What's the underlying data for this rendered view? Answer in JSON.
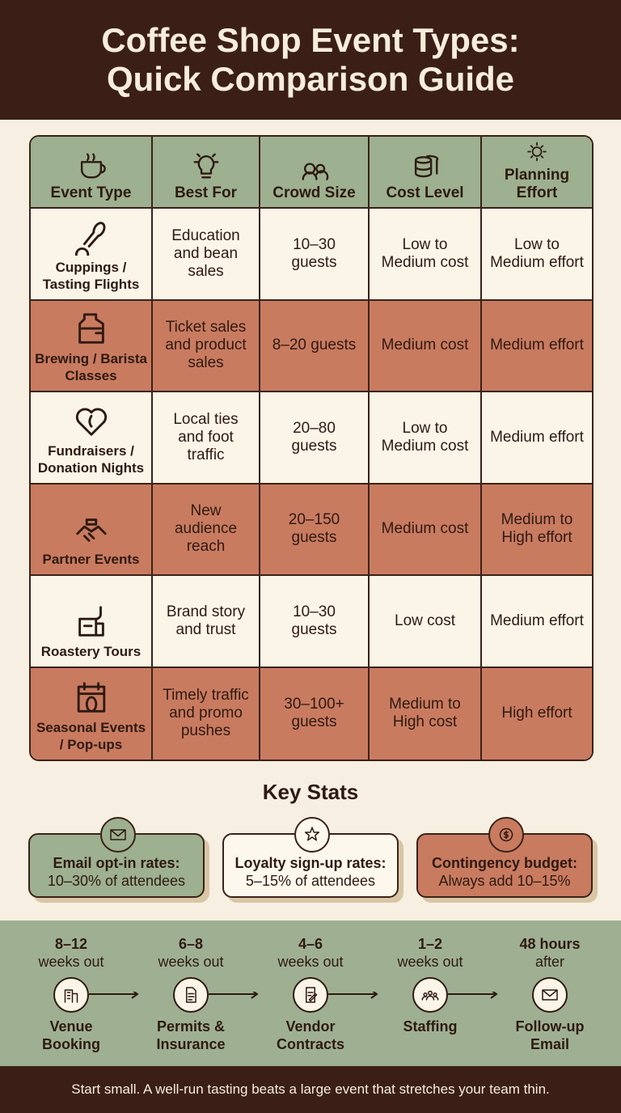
{
  "header": {
    "title_lines": [
      "Coffee Shop Event Types:",
      "Quick Comparison Guide"
    ]
  },
  "table": {
    "columns": [
      "Event Type",
      "Best For",
      "Crowd Size",
      "Cost Level",
      "Planning Effort"
    ],
    "rows": [
      [
        "Cuppings / Tasting Flights",
        "Education and bean sales",
        "10–30 guests",
        "Low to Medium cost",
        "Low to Medium effort"
      ],
      [
        "Brewing / Barista Classes",
        "Ticket sales and product sales",
        "8–20 guests",
        "Medium cost",
        "Medium effort"
      ],
      [
        "Fundraisers / Donation Nights",
        "Local ties and foot traffic",
        "20–80 guests",
        "Low to Medium cost",
        "Medium effort"
      ],
      [
        "Partner Events",
        "New audience reach",
        "20–150 guests",
        "Medium cost",
        "Medium to High effort"
      ],
      [
        "Roastery Tours",
        "Brand story and trust",
        "10–30 guests",
        "Low cost",
        "Medium effort"
      ],
      [
        "Seasonal Events / Pop-ups",
        "Timely traffic and promo pushes",
        "30–100+ guests",
        "Medium to High cost",
        "High effort"
      ]
    ]
  },
  "key_stats": {
    "title": "Key Stats",
    "items": [
      {
        "label": "Email opt-in rates:",
        "value": "10–30% of attendees"
      },
      {
        "label": "Loyalty sign-up rates:",
        "value": "5–15% of attendees"
      },
      {
        "label": "Contingency budget:",
        "value": "Always add 10–15%"
      }
    ]
  },
  "timeline": {
    "steps": [
      {
        "time": "8–12",
        "unit": "weeks out",
        "label": "Venue Booking"
      },
      {
        "time": "6–8",
        "unit": "weeks out",
        "label": "Permits & Insurance"
      },
      {
        "time": "4–6",
        "unit": "weeks out",
        "label": "Vendor Contracts"
      },
      {
        "time": "1–2",
        "unit": "weeks out",
        "label": "Staffing"
      },
      {
        "time": "48 hours",
        "unit": "after",
        "label": "Follow-up Email"
      }
    ]
  },
  "footer": {
    "text": "Start small. A well-run tasting beats a large event that stretches your team thin."
  }
}
